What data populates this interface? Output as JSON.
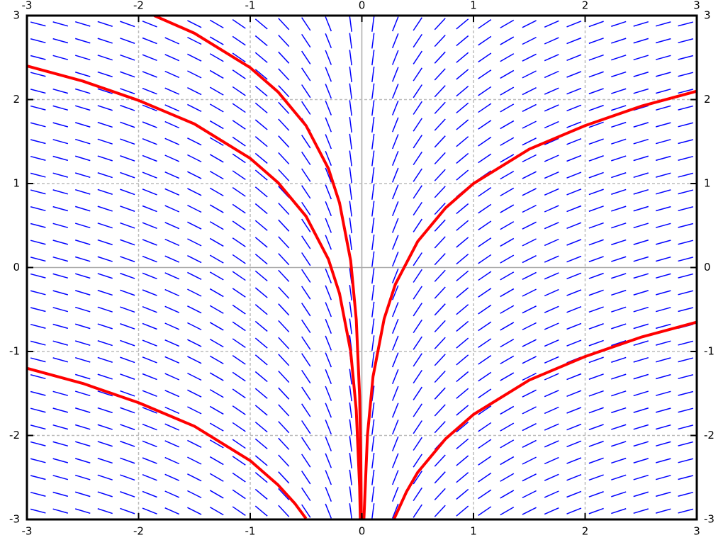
{
  "chart_data": {
    "type": "slope_field",
    "xlim": [
      -3,
      3
    ],
    "ylim": [
      -3,
      3
    ],
    "xticks": [
      -3,
      -2,
      -1,
      0,
      1,
      2,
      3
    ],
    "yticks": [
      -3,
      -2,
      -1,
      0,
      1,
      2,
      3
    ],
    "grid": true,
    "field": {
      "color": "#0000ff",
      "x": [
        -2.9,
        -2.7,
        -2.5,
        -2.3,
        -2.1,
        -1.9,
        -1.7,
        -1.5,
        -1.3,
        -1.1,
        -0.9,
        -0.7,
        -0.5,
        -0.3,
        -0.1,
        0.1,
        0.3,
        0.5,
        0.7,
        0.9,
        1.1,
        1.3,
        1.5,
        1.7,
        1.9,
        2.1,
        2.3,
        2.5,
        2.7,
        2.9
      ],
      "y": [
        -2.9,
        -2.7,
        -2.5,
        -2.3,
        -2.1,
        -1.9,
        -1.7,
        -1.5,
        -1.3,
        -1.1,
        -0.9,
        -0.7,
        -0.5,
        -0.3,
        -0.1,
        0.1,
        0.3,
        0.5,
        0.7,
        0.9,
        1.1,
        1.3,
        1.5,
        1.7,
        1.9,
        2.1,
        2.3,
        2.5,
        2.7,
        2.9
      ],
      "slopes": [
        -0.345,
        -0.37,
        -0.4,
        -0.435,
        -0.476,
        -0.526,
        -0.588,
        -0.667,
        -0.769,
        -0.909,
        -1.111,
        -1.429,
        -2,
        -3.333,
        -10,
        10,
        3.333,
        2,
        1.429,
        1.111,
        0.909,
        0.769,
        0.667,
        0.588,
        0.526,
        0.476,
        0.435,
        0.4,
        0.37,
        0.345
      ]
    },
    "series": [
      {
        "color": "#ff0000",
        "x": [
          0.0183,
          0.05,
          0.1,
          0.2,
          0.3,
          0.5,
          0.75,
          1,
          1.5,
          2,
          2.5,
          3
        ],
        "values": [
          -3.0,
          -2.0,
          -1.3,
          -0.61,
          -0.2,
          0.31,
          0.71,
          1,
          1.41,
          1.69,
          1.92,
          2.1
        ]
      },
      {
        "color": "#ff0000",
        "x": [
          0.29,
          0.4,
          0.5,
          0.75,
          1,
          1.5,
          2,
          2.5,
          3
        ],
        "values": [
          -2.99,
          -2.67,
          -2.44,
          -2.04,
          -1.75,
          -1.34,
          -1.06,
          -0.83,
          -0.65
        ]
      },
      {
        "color": "#ff0000",
        "x": [
          -1.86,
          -1.5,
          -1,
          -0.75,
          -0.5,
          -0.3,
          -0.2,
          -0.1,
          -0.05,
          -0.02,
          -0.01,
          -0.0046
        ],
        "values": [
          3.0,
          2.79,
          2.38,
          2.09,
          1.69,
          1.18,
          0.77,
          0.08,
          -0.62,
          -1.53,
          -2.23,
          -3.0
        ]
      },
      {
        "color": "#ff0000",
        "x": [
          -3,
          -2.5,
          -2,
          -1.5,
          -1,
          -0.75,
          -0.5,
          -0.3,
          -0.2,
          -0.1,
          -0.05,
          -0.02,
          -0.0136
        ],
        "values": [
          2.4,
          2.22,
          1.99,
          1.71,
          1.3,
          1.01,
          0.61,
          0.1,
          -0.31,
          -1.0,
          -1.7,
          -2.61,
          -3.0
        ]
      },
      {
        "color": "#ff0000",
        "x": [
          -3,
          -2.5,
          -2,
          -1.5,
          -1,
          -0.75,
          -0.6,
          -0.5
        ],
        "values": [
          -1.2,
          -1.38,
          -1.61,
          -1.89,
          -2.3,
          -2.59,
          -2.81,
          -2.99
        ]
      }
    ]
  }
}
